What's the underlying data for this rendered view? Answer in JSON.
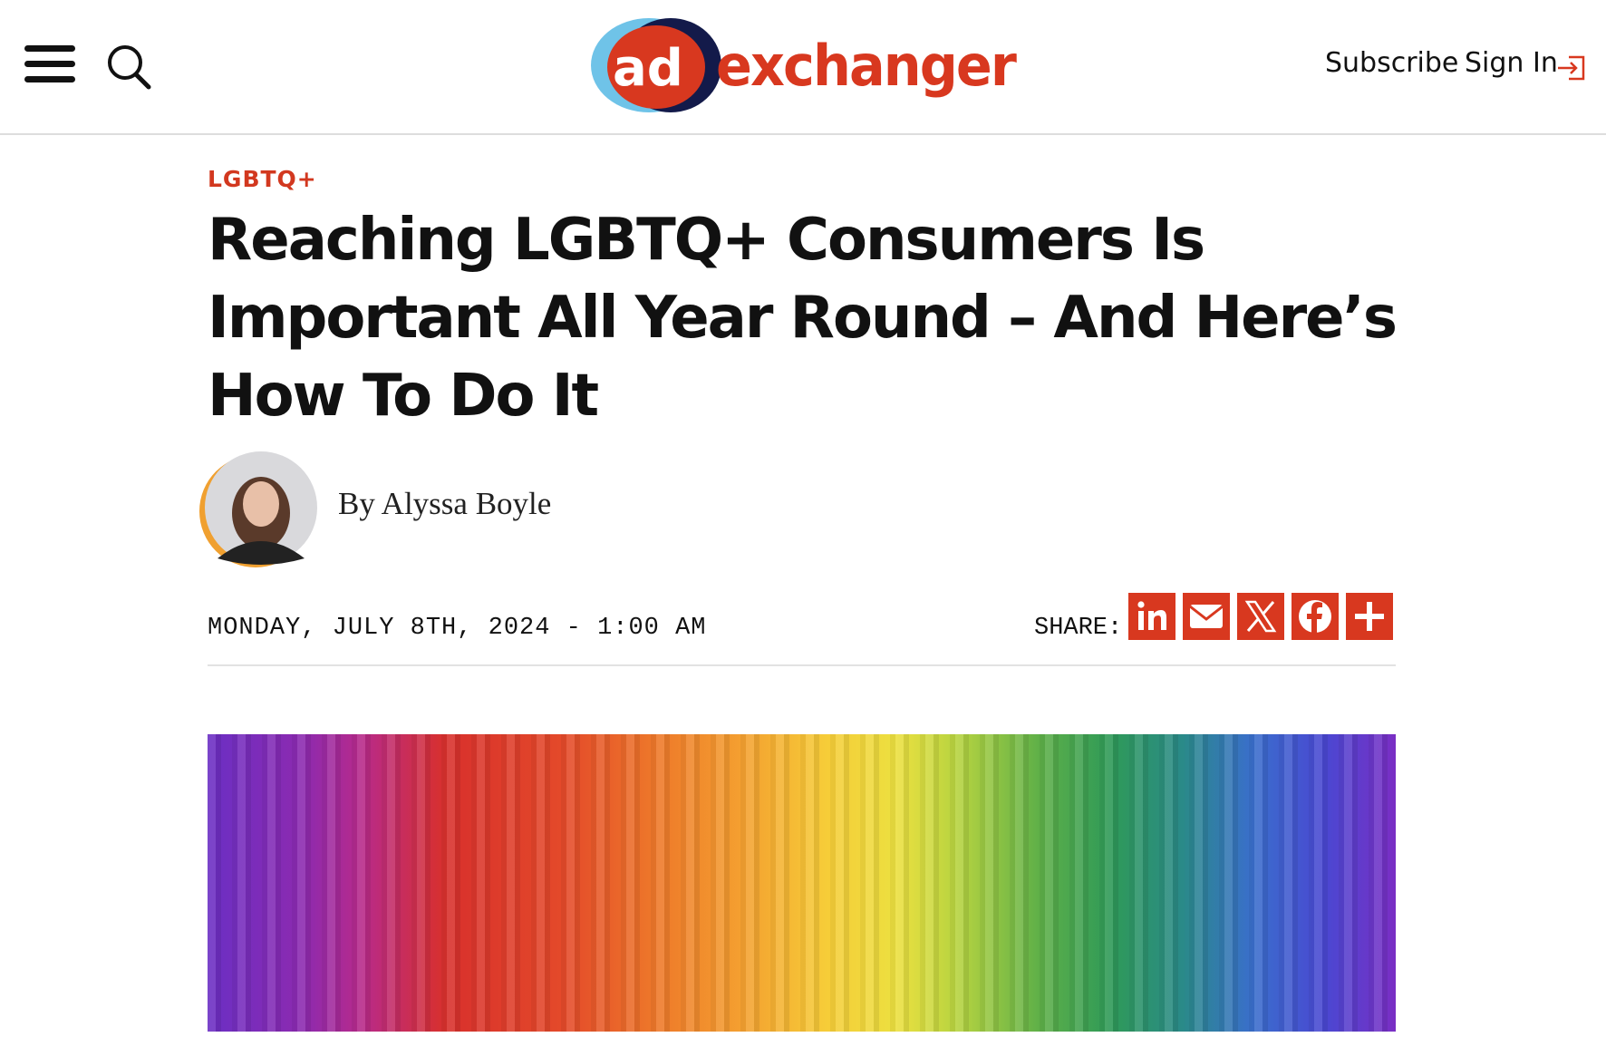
{
  "header": {
    "logo_ad": "ad",
    "logo_exchanger": "exchanger",
    "subscribe": "Subscribe",
    "sign_in": "Sign In"
  },
  "article": {
    "category": "LGBTQ+",
    "title_lines": [
      "Reaching LGBTQ+ Consumers Is",
      "Important All Year Round – And Here’s",
      "How To Do It"
    ],
    "byline": "By Alyssa Boyle",
    "date": "MONDAY, JULY 8TH, 2024 - 1:00 AM",
    "share_label": "SHARE:"
  }
}
